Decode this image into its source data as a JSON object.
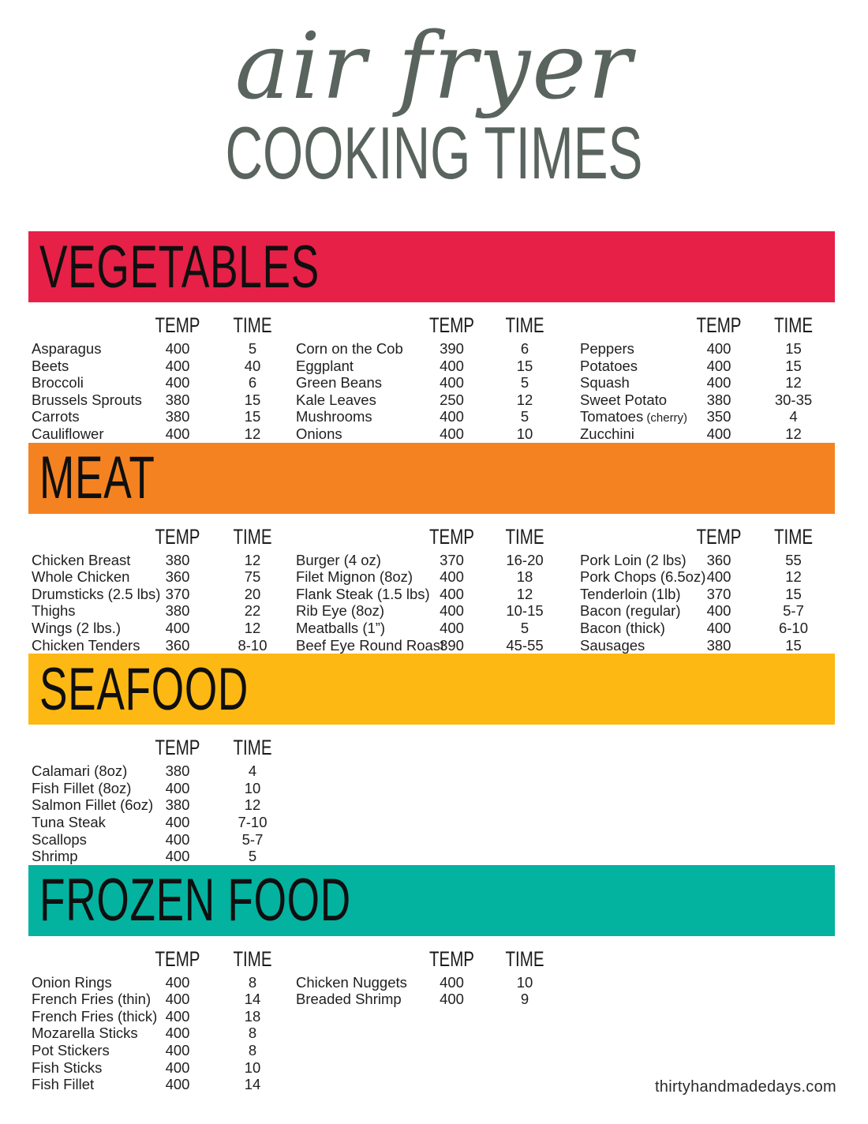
{
  "header": {
    "script_title": "air fryer",
    "block_title": "COOKING TIMES"
  },
  "labels": {
    "temp": "TEMP",
    "time": "TIME"
  },
  "theme": {
    "title_color": "#5a645e",
    "vegetables_color": "#e72048",
    "meat_color": "#f58220",
    "seafood_color": "#fdb813",
    "frozen_color": "#04b2a0"
  },
  "sections": [
    {
      "id": "vegetables",
      "title": "VEGETABLES",
      "color": "#e72048",
      "groups": [
        {
          "rows": [
            {
              "food": "Asparagus",
              "temp": "400",
              "time": "5"
            },
            {
              "food": "Beets",
              "temp": "400",
              "time": "40"
            },
            {
              "food": "Broccoli",
              "temp": "400",
              "time": "6"
            },
            {
              "food": "Brussels Sprouts",
              "temp": "380",
              "time": "15"
            },
            {
              "food": "Carrots",
              "temp": "380",
              "time": "15"
            },
            {
              "food": "Cauliflower",
              "temp": "400",
              "time": "12"
            }
          ]
        },
        {
          "rows": [
            {
              "food": "Corn on the Cob",
              "temp": "390",
              "time": "6"
            },
            {
              "food": "Eggplant",
              "temp": "400",
              "time": "15"
            },
            {
              "food": "Green Beans",
              "temp": "400",
              "time": "5"
            },
            {
              "food": "Kale Leaves",
              "temp": "250",
              "time": "12"
            },
            {
              "food": "Mushrooms",
              "temp": "400",
              "time": "5"
            },
            {
              "food": "Onions",
              "temp": "400",
              "time": "10"
            }
          ]
        },
        {
          "rows": [
            {
              "food": "Peppers",
              "temp": "400",
              "time": "15"
            },
            {
              "food": "Potatoes",
              "temp": "400",
              "time": "15"
            },
            {
              "food": "Squash",
              "temp": "400",
              "time": "12"
            },
            {
              "food": "Sweet Potato",
              "temp": "380",
              "time": "30-35"
            },
            {
              "food": "Tomatoes",
              "note": "(cherry)",
              "temp": "350",
              "time": "4"
            },
            {
              "food": "Zucchini",
              "temp": "400",
              "time": "12"
            }
          ]
        }
      ]
    },
    {
      "id": "meat",
      "title": "MEAT",
      "color": "#f58220",
      "groups": [
        {
          "rows": [
            {
              "food": "Chicken Breast",
              "temp": "380",
              "time": "12"
            },
            {
              "food": "Whole Chicken",
              "temp": "360",
              "time": "75"
            },
            {
              "food": "Drumsticks (2.5 lbs)",
              "temp": "370",
              "time": "20"
            },
            {
              "food": "Thighs",
              "temp": "380",
              "time": "22"
            },
            {
              "food": "Wings (2 lbs.)",
              "temp": "400",
              "time": "12"
            },
            {
              "food": "Chicken Tenders",
              "temp": "360",
              "time": "8-10"
            }
          ]
        },
        {
          "rows": [
            {
              "food": "Burger (4 oz)",
              "temp": "370",
              "time": "16-20"
            },
            {
              "food": "Filet Mignon (8oz)",
              "temp": "400",
              "time": "18"
            },
            {
              "food": "Flank Steak (1.5 lbs)",
              "temp": "400",
              "time": "12"
            },
            {
              "food": "Rib Eye (8oz)",
              "temp": "400",
              "time": "10-15"
            },
            {
              "food": "Meatballs (1”)",
              "temp": "400",
              "time": "5"
            },
            {
              "food": "Beef Eye Round Roast",
              "temp": "390",
              "time": "45-55"
            }
          ]
        },
        {
          "rows": [
            {
              "food": "Pork Loin (2 lbs)",
              "temp": "360",
              "time": "55"
            },
            {
              "food": "Pork Chops (6.5oz)",
              "temp": "400",
              "time": "12"
            },
            {
              "food": "Tenderloin (1lb)",
              "temp": "370",
              "time": "15"
            },
            {
              "food": "Bacon (regular)",
              "temp": "400",
              "time": "5-7"
            },
            {
              "food": "Bacon (thick)",
              "temp": "400",
              "time": "6-10"
            },
            {
              "food": "Sausages",
              "temp": "380",
              "time": "15"
            }
          ]
        }
      ]
    },
    {
      "id": "seafood",
      "title": "SEAFOOD",
      "color": "#fdb813",
      "groups": [
        {
          "rows": [
            {
              "food": "Calamari (8oz)",
              "temp": "380",
              "time": "4"
            },
            {
              "food": "Fish Fillet (8oz)",
              "temp": "400",
              "time": "10"
            },
            {
              "food": "Salmon Fillet (6oz)",
              "temp": "380",
              "time": "12"
            },
            {
              "food": "Tuna Steak",
              "temp": "400",
              "time": "7-10"
            },
            {
              "food": "Scallops",
              "temp": "400",
              "time": "5-7"
            },
            {
              "food": "Shrimp",
              "temp": "400",
              "time": "5"
            }
          ]
        }
      ]
    },
    {
      "id": "frozen-food",
      "title": "FROZEN FOOD",
      "color": "#04b2a0",
      "groups": [
        {
          "rows": [
            {
              "food": "Onion Rings",
              "temp": "400",
              "time": "8"
            },
            {
              "food": "French Fries (thin)",
              "temp": "400",
              "time": "14"
            },
            {
              "food": "French Fries (thick)",
              "temp": "400",
              "time": "18"
            },
            {
              "food": "Mozarella Sticks",
              "temp": "400",
              "time": "8"
            },
            {
              "food": "Pot Stickers",
              "temp": "400",
              "time": "8"
            },
            {
              "food": "Fish Sticks",
              "temp": "400",
              "time": "10"
            },
            {
              "food": "Fish Fillet",
              "temp": "400",
              "time": "14"
            }
          ]
        },
        {
          "rows": [
            {
              "food": "Chicken Nuggets",
              "temp": "400",
              "time": "10"
            },
            {
              "food": "Breaded Shrimp",
              "temp": "400",
              "time": "9"
            }
          ]
        }
      ]
    }
  ],
  "footer": {
    "site": "thirtyhandmadedays.com"
  }
}
